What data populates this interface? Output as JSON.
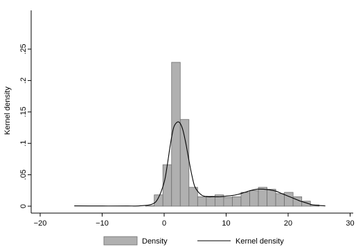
{
  "chart_data": {
    "type": "bar",
    "title": "",
    "xlabel": "",
    "ylabel": "Kernel density",
    "xlim": [
      -20,
      30
    ],
    "ylim": [
      0,
      0.25
    ],
    "x_ticks": [
      -20,
      -10,
      0,
      10,
      20,
      30
    ],
    "x_tick_labels": [
      "−20",
      "−10",
      "0",
      "10",
      "20",
      "30"
    ],
    "y_ticks": [
      0,
      0.05,
      0.1,
      0.15,
      0.2,
      0.25
    ],
    "y_tick_labels": [
      "0",
      ".05",
      ".1",
      ".15",
      ".2",
      ".25"
    ],
    "grid": false,
    "legend_position": "bottom",
    "colors": {
      "bar_fill": "#b0b0b0",
      "bar_stroke": "#6f6f6f",
      "line": "#000000",
      "axis": "#000000"
    },
    "histogram": {
      "name": "Density",
      "bin_width": 1.4,
      "bins": [
        {
          "x_start": -3.0,
          "density": 0.001
        },
        {
          "x_start": -1.6,
          "density": 0.018
        },
        {
          "x_start": -0.2,
          "density": 0.066
        },
        {
          "x_start": 1.2,
          "density": 0.229
        },
        {
          "x_start": 2.6,
          "density": 0.138
        },
        {
          "x_start": 4.0,
          "density": 0.03
        },
        {
          "x_start": 5.4,
          "density": 0.015
        },
        {
          "x_start": 6.8,
          "density": 0.016
        },
        {
          "x_start": 8.2,
          "density": 0.018
        },
        {
          "x_start": 9.6,
          "density": 0.014
        },
        {
          "x_start": 11.0,
          "density": 0.015
        },
        {
          "x_start": 12.4,
          "density": 0.022
        },
        {
          "x_start": 13.8,
          "density": 0.025
        },
        {
          "x_start": 15.2,
          "density": 0.03
        },
        {
          "x_start": 16.6,
          "density": 0.027
        },
        {
          "x_start": 18.0,
          "density": 0.02
        },
        {
          "x_start": 19.4,
          "density": 0.022
        },
        {
          "x_start": 20.8,
          "density": 0.015
        },
        {
          "x_start": 22.2,
          "density": 0.008
        },
        {
          "x_start": 23.6,
          "density": 0.002
        }
      ]
    },
    "kernel_density": {
      "name": "Kernel density",
      "x": [
        -14.5,
        -10,
        -6,
        -4,
        -2,
        -1,
        0,
        0.5,
        1,
        1.5,
        2,
        2.5,
        3,
        3.5,
        4,
        4.5,
        5,
        6,
        7,
        8,
        9,
        10,
        11,
        12,
        13,
        14,
        15,
        16,
        17,
        18,
        19,
        20,
        21,
        22,
        23,
        24,
        26
      ],
      "y": [
        0.0005,
        0.0003,
        0.0003,
        0.0005,
        0.003,
        0.012,
        0.038,
        0.065,
        0.098,
        0.124,
        0.133,
        0.133,
        0.122,
        0.1,
        0.073,
        0.048,
        0.03,
        0.018,
        0.015,
        0.015,
        0.015,
        0.016,
        0.017,
        0.019,
        0.022,
        0.025,
        0.027,
        0.027,
        0.026,
        0.024,
        0.02,
        0.016,
        0.012,
        0.008,
        0.005,
        0.002,
        0.0005
      ]
    }
  },
  "legend": {
    "items": [
      {
        "label": "Density",
        "kind": "bar"
      },
      {
        "label": "Kernel density",
        "kind": "line"
      }
    ]
  }
}
